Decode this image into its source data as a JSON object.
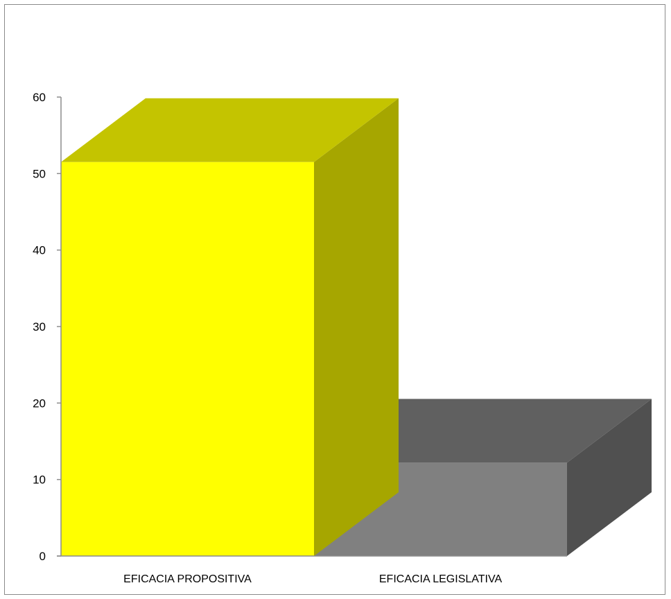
{
  "chart_data": {
    "type": "bar",
    "style": "3d-clustered-column",
    "title": "",
    "xlabel": "",
    "ylabel": "",
    "categories": [
      "EFICACIA PROPOSITIVA",
      "EFICACIA LEGISLATIVA"
    ],
    "values": [
      51.5,
      12.2
    ],
    "ylim": [
      0,
      60
    ],
    "yticks": [
      0,
      10,
      20,
      30,
      40,
      50,
      60
    ],
    "grid": false,
    "legend": "none",
    "colors": {
      "bar_fronts": [
        "#ffff00",
        "#808080"
      ],
      "bar_tops": [
        "#c4c400",
        "#606060"
      ],
      "bar_sides": [
        "#a6a600",
        "#505050"
      ],
      "axis": "#8c8c8c"
    }
  }
}
